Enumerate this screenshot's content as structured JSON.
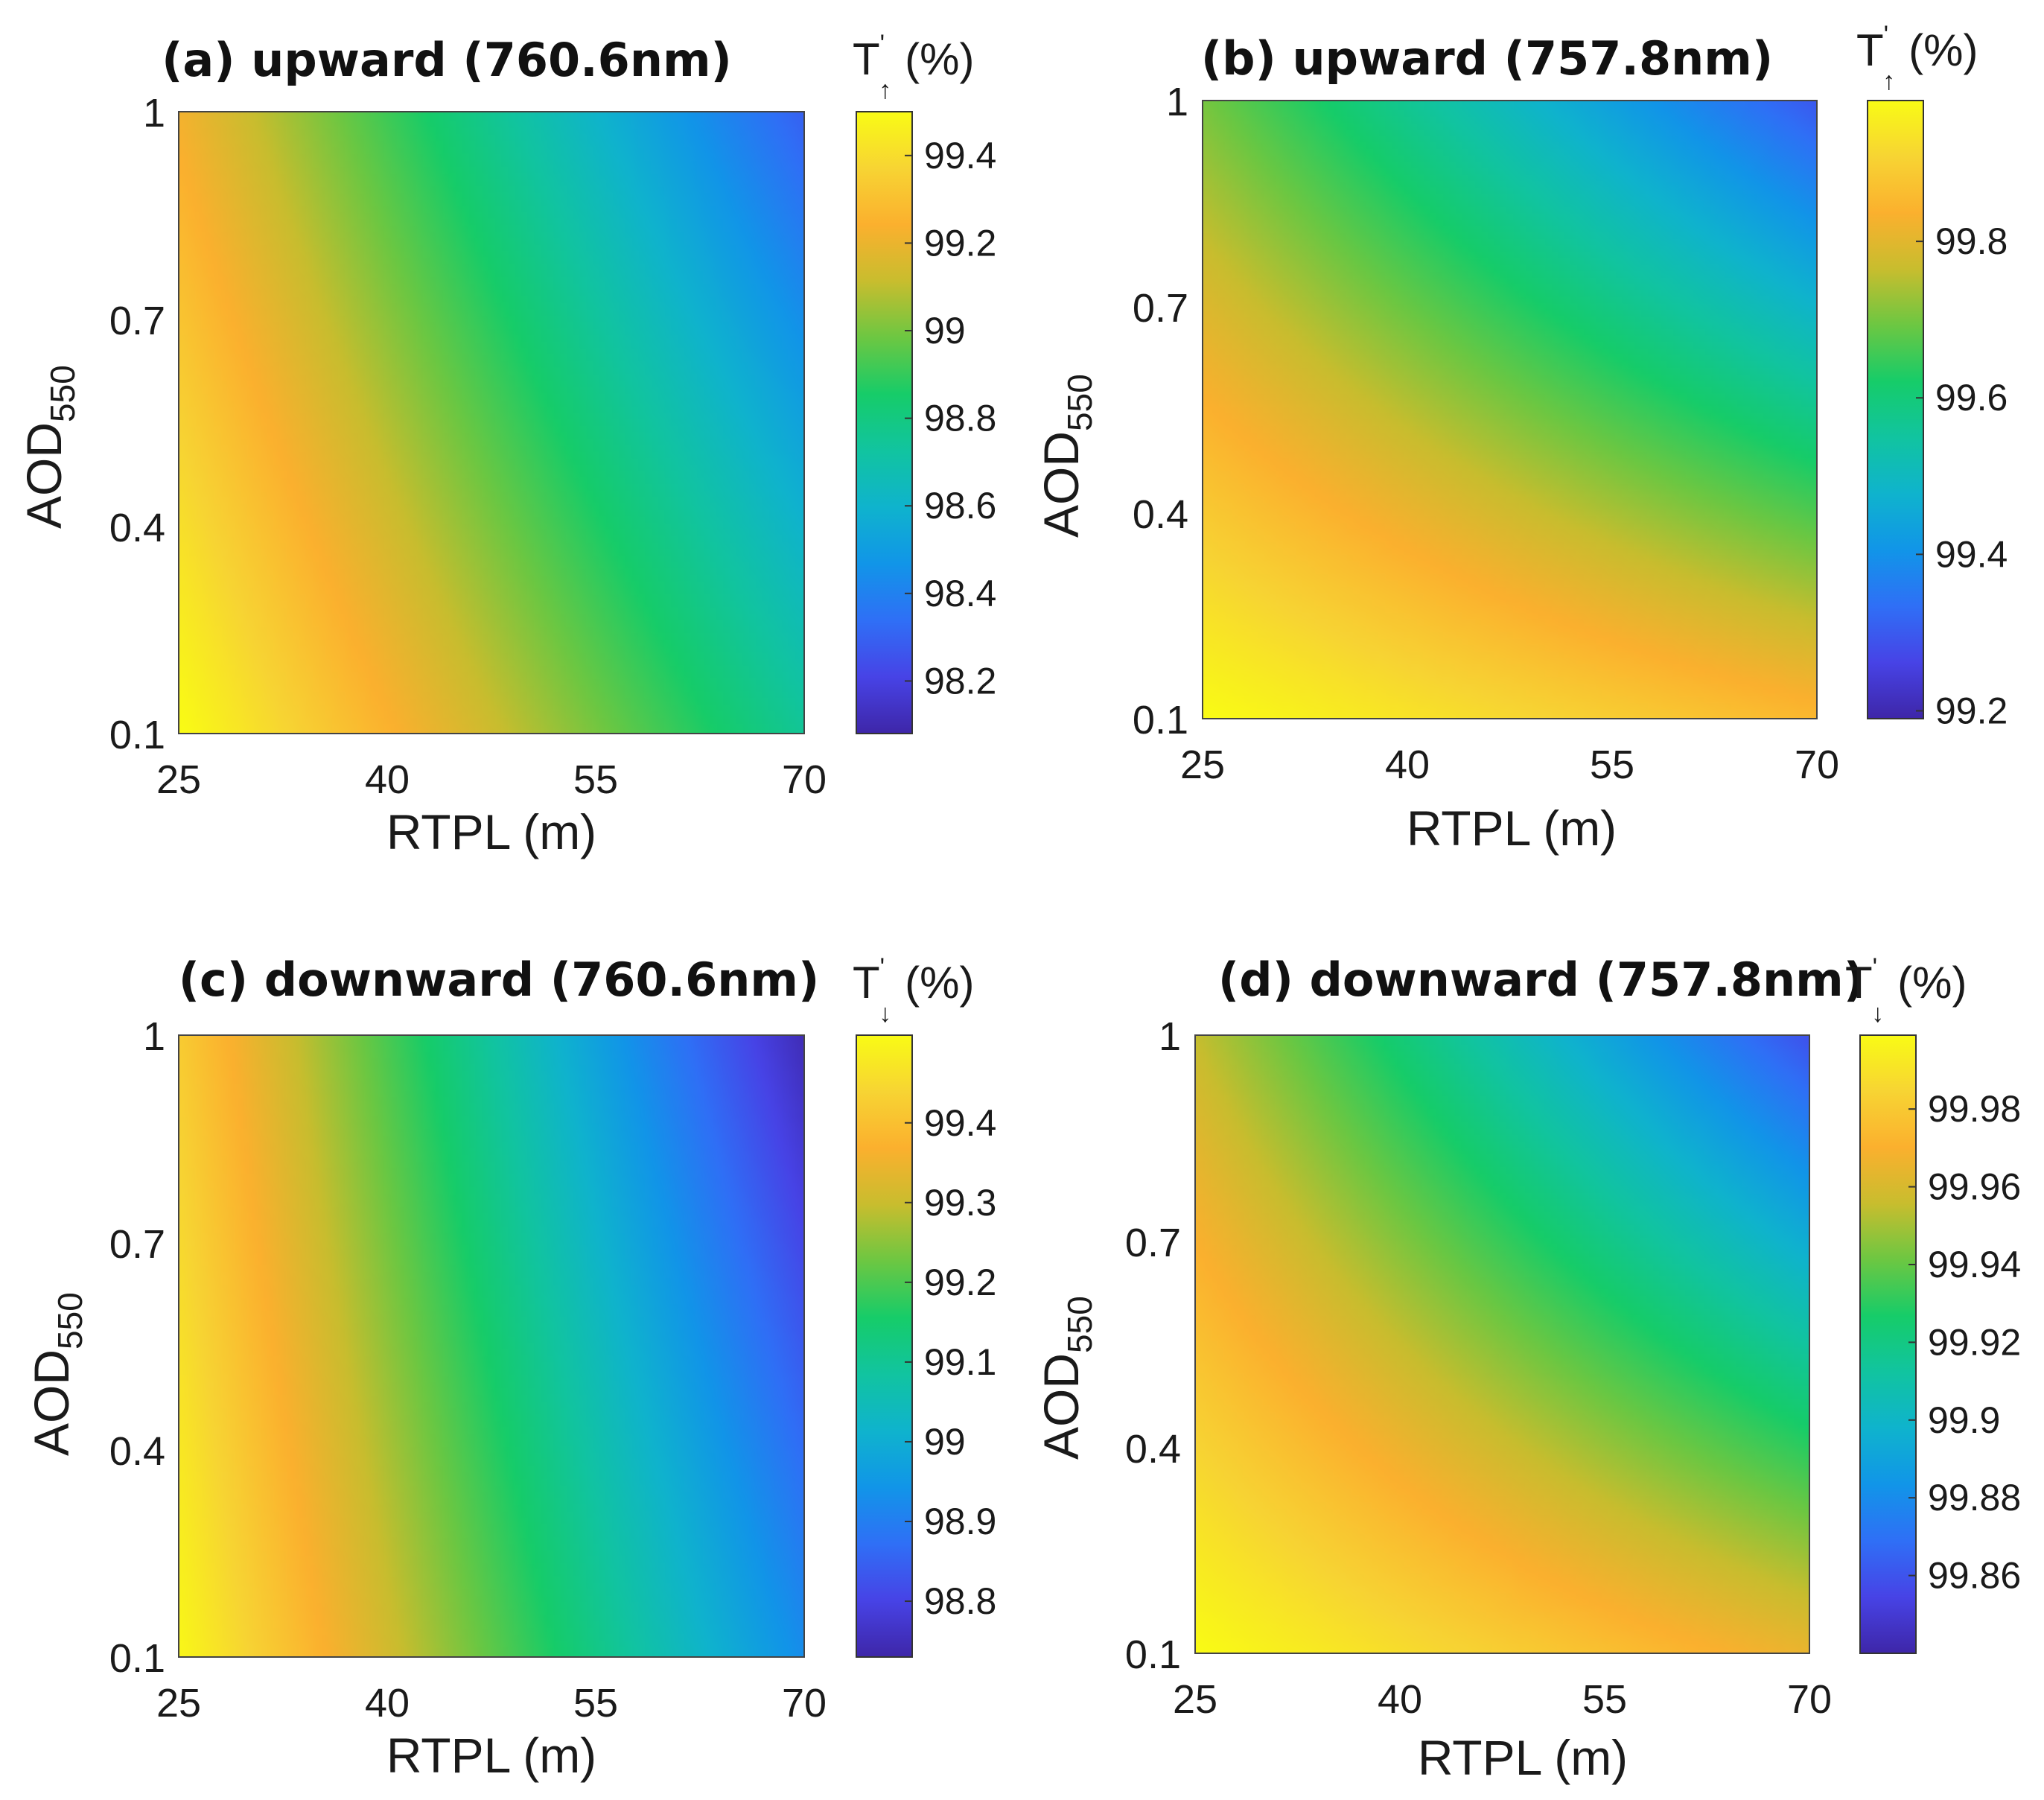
{
  "colors": {
    "parula": [
      "#3e26a8",
      "#4743e6",
      "#2f6ff6",
      "#1195e8",
      "#0fb3cd",
      "#11c4a0",
      "#16cc69",
      "#6cc742",
      "#c8bd2e",
      "#fbb02e",
      "#f7d433",
      "#f9fb15"
    ]
  },
  "chart_data": [
    {
      "type": "heatmap",
      "title": "(a) upward (760.6nm)",
      "xlabel": "RTPL (m)",
      "ylabel_main": "AOD",
      "ylabel_sub": "550",
      "x_ticks": [
        "25",
        "40",
        "55",
        "70"
      ],
      "y_ticks": [
        "0.1",
        "0.4",
        "0.7",
        "1"
      ],
      "xlim": [
        25,
        70
      ],
      "ylim": [
        0.1,
        1
      ],
      "colorbar": {
        "label_main": "T",
        "label_prime": "'",
        "label_sub": "↑",
        "label_unit": "(%)",
        "ticks": [
          "98.2",
          "98.4",
          "98.6",
          "98.8",
          "99",
          "99.2",
          "99.4"
        ],
        "tick_values": [
          98.2,
          98.4,
          98.6,
          98.8,
          99.0,
          99.2,
          99.4
        ],
        "range": [
          98.08,
          99.5
        ]
      },
      "field": {
        "T_at_25_0.1": 99.5,
        "T_at_70_0.1": 98.75,
        "T_at_25_1": 99.22,
        "T_at_70_1": 98.3
      }
    },
    {
      "type": "heatmap",
      "title": "(b) upward (757.8nm)",
      "xlabel": "RTPL (m)",
      "ylabel_main": "AOD",
      "ylabel_sub": "550",
      "x_ticks": [
        "25",
        "40",
        "55",
        "70"
      ],
      "y_ticks": [
        "0.1",
        "0.4",
        "0.7",
        "1"
      ],
      "xlim": [
        25,
        70
      ],
      "ylim": [
        0.1,
        1
      ],
      "colorbar": {
        "label_main": "T",
        "label_prime": "'",
        "label_sub": "↑",
        "label_unit": "(%)",
        "ticks": [
          "99.2",
          "99.4",
          "99.6",
          "99.8"
        ],
        "tick_values": [
          99.2,
          99.4,
          99.6,
          99.8
        ],
        "range": [
          99.19,
          99.98
        ]
      },
      "field": {
        "T_at_25_0.1": 99.98,
        "T_at_70_0.1": 99.85,
        "T_at_25_1": 99.7,
        "T_at_70_1": 99.3
      }
    },
    {
      "type": "heatmap",
      "title": "(c) downward (760.6nm)",
      "xlabel": "RTPL (m)",
      "ylabel_main": "AOD",
      "ylabel_sub": "550",
      "x_ticks": [
        "25",
        "40",
        "55",
        "70"
      ],
      "y_ticks": [
        "0.1",
        "0.4",
        "0.7",
        "1"
      ],
      "xlim": [
        25,
        70
      ],
      "ylim": [
        0.1,
        1
      ],
      "colorbar": {
        "label_main": "T",
        "label_prime": "'",
        "label_sub": "↓",
        "label_unit": "(%)",
        "ticks": [
          "98.8",
          "98.9",
          "99",
          "99.1",
          "99.2",
          "99.3",
          "99.4"
        ],
        "tick_values": [
          98.8,
          98.9,
          99.0,
          99.1,
          99.2,
          99.3,
          99.4
        ],
        "range": [
          98.73,
          99.51
        ]
      },
      "field": {
        "T_at_25_0.1": 99.5,
        "T_at_70_0.1": 98.93,
        "T_at_25_1": 99.42,
        "T_at_70_1": 98.75
      }
    },
    {
      "type": "heatmap",
      "title": "(d) downward (757.8nm)",
      "xlabel": "RTPL (m)",
      "ylabel_main": "AOD",
      "ylabel_sub": "550",
      "x_ticks": [
        "25",
        "40",
        "55",
        "70"
      ],
      "y_ticks": [
        "0.1",
        "0.4",
        "0.7",
        "1"
      ],
      "xlim": [
        25,
        70
      ],
      "ylim": [
        0.1,
        1
      ],
      "colorbar": {
        "label_main": "T",
        "label_prime": "'",
        "label_sub": "↓",
        "label_unit": "(%)",
        "ticks": [
          "99.86",
          "99.88",
          "99.9",
          "99.92",
          "99.94",
          "99.96",
          "99.98"
        ],
        "tick_values": [
          99.86,
          99.88,
          99.9,
          99.92,
          99.94,
          99.96,
          99.98
        ],
        "range": [
          99.84,
          99.999
        ]
      },
      "field": {
        "T_at_25_0.1": 99.999,
        "T_at_70_0.1": 99.965,
        "T_at_25_1": 99.955,
        "T_at_70_1": 99.86
      }
    }
  ]
}
